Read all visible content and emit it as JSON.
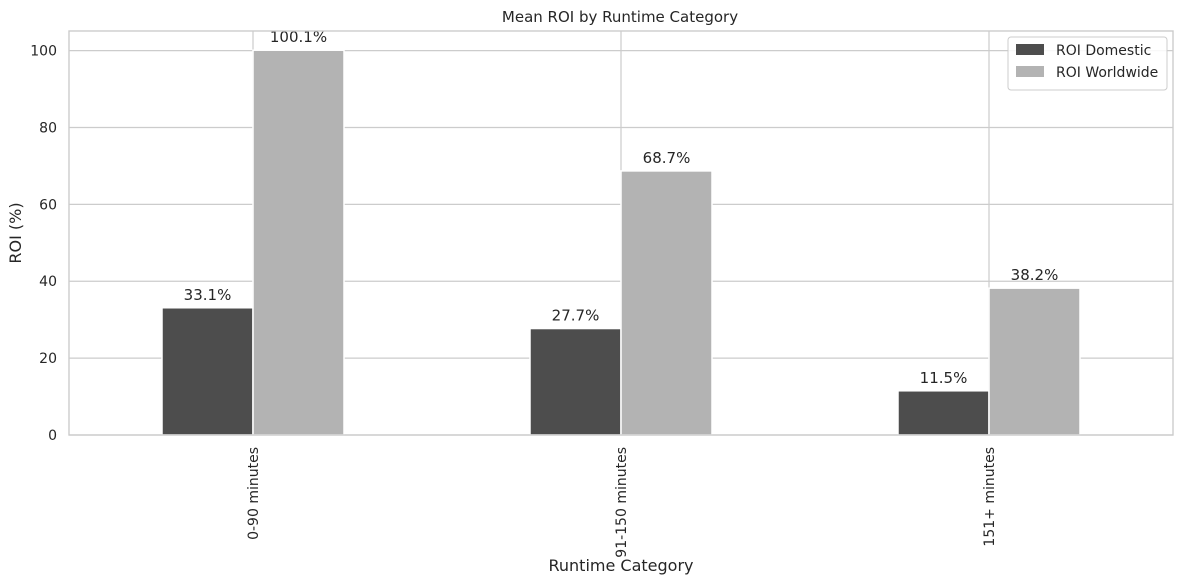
{
  "chart_data": {
    "type": "bar",
    "title": "Mean ROI by Runtime Category",
    "xlabel": "Runtime Category",
    "ylabel": "ROI (%)",
    "categories": [
      "0-90 minutes",
      "91-150 minutes",
      "151+ minutes"
    ],
    "series": [
      {
        "name": "ROI Domestic",
        "values": [
          33.1,
          27.7,
          11.5
        ],
        "color": "#4d4d4d",
        "data_labels": [
          "33.1%",
          "27.7%",
          "11.5%"
        ]
      },
      {
        "name": "ROI Worldwide",
        "values": [
          100.1,
          68.7,
          38.2
        ],
        "color": "#b3b3b3",
        "data_labels": [
          "100.1%",
          "68.7%",
          "38.2%"
        ]
      }
    ],
    "ylim": [
      0,
      105.1
    ],
    "yticks": [
      0,
      20,
      40,
      60,
      80,
      100
    ],
    "ytick_labels": [
      "0",
      "20",
      "40",
      "60",
      "80",
      "100"
    ],
    "grid": true,
    "legend_position": "top-right",
    "tick_label_rotation": "vertical"
  }
}
